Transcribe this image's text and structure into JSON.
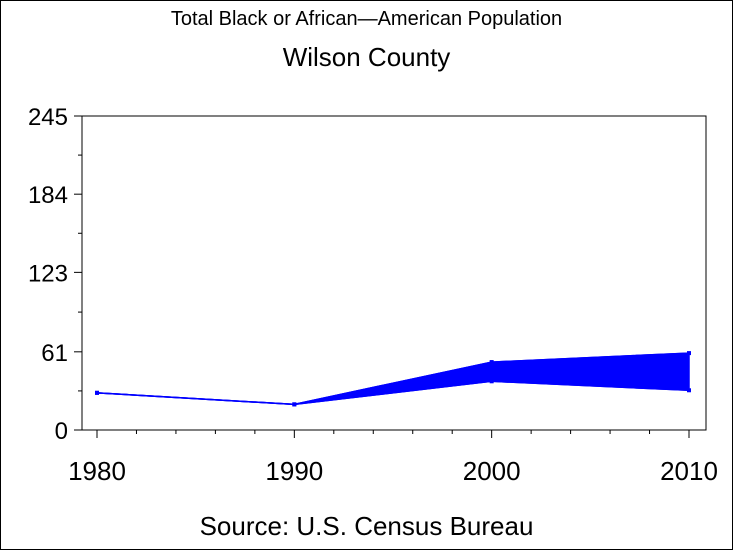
{
  "chart_data": {
    "type": "area",
    "title": "Total Black or African—American Population",
    "subtitle": "Wilson County",
    "source": "Source: U.S. Census Bureau",
    "xlabel": "",
    "ylabel": "",
    "x_categories": [
      "1980",
      "1990",
      "2000",
      "2010"
    ],
    "y_ticks": [
      "0",
      "61",
      "123",
      "184",
      "245"
    ],
    "ylim": [
      0,
      245
    ],
    "grid": false,
    "series": [
      {
        "x": 1980,
        "low": 29,
        "high": 29
      },
      {
        "x": 1990,
        "low": 20,
        "high": 20
      },
      {
        "x": 2000,
        "low": 38,
        "high": 53
      },
      {
        "x": 2010,
        "low": 31,
        "high": 60
      }
    ],
    "colors": {
      "series": "#0000ff",
      "axis": "#000000",
      "background": "#ffffff"
    }
  }
}
